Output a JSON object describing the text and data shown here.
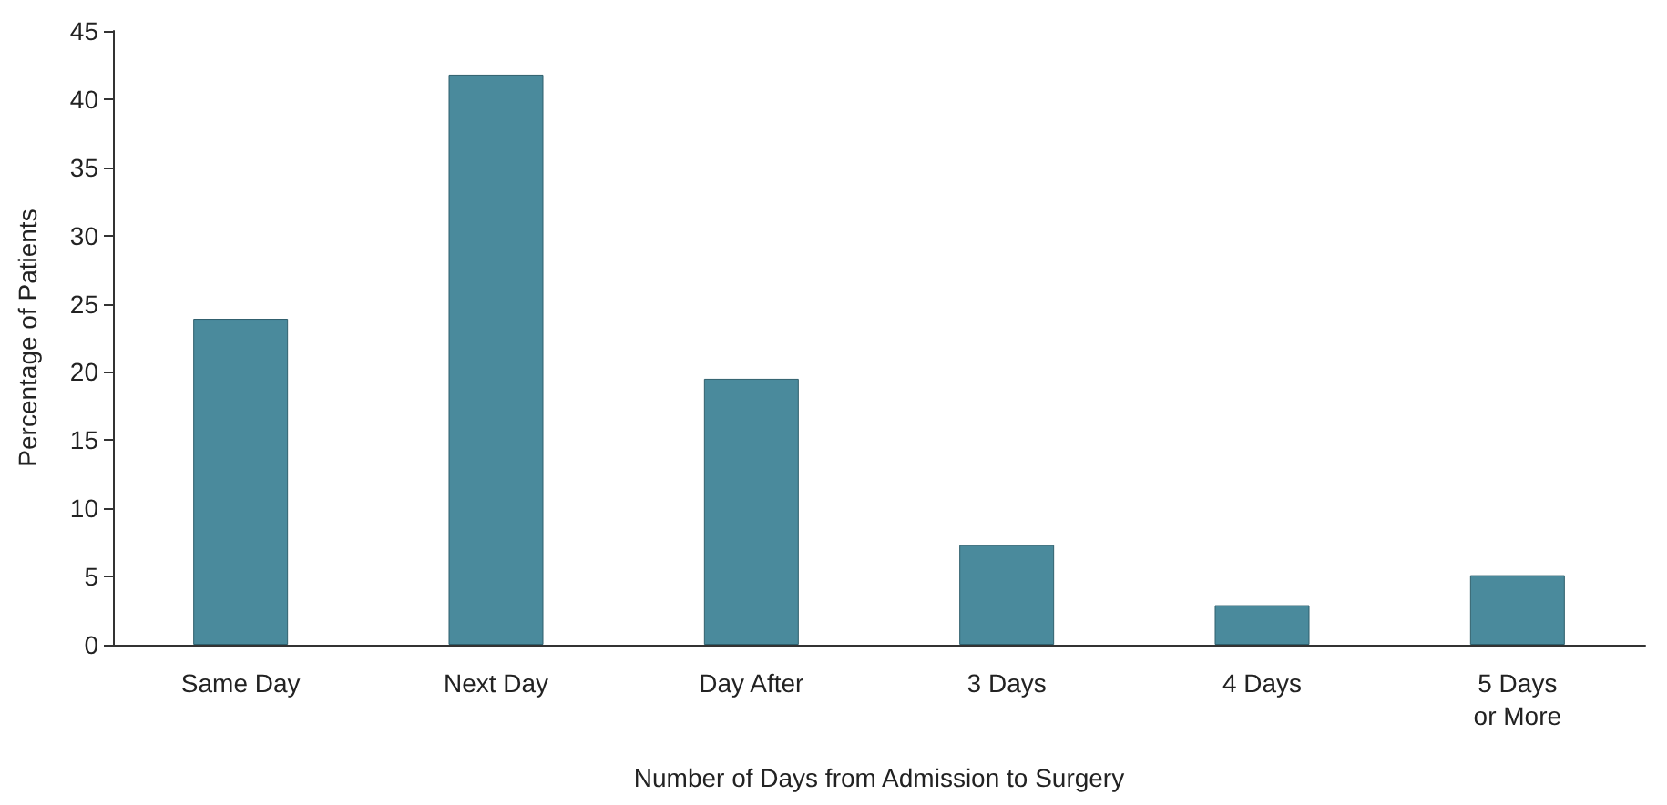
{
  "chart_data": {
    "type": "bar",
    "xlabel": "Number of Days from Admission to Surgery",
    "ylabel": "Percentage of Patients",
    "categories": [
      "Same Day",
      "Next Day",
      "Day After",
      "3 Days",
      "4 Days",
      "5 Days\nor More"
    ],
    "values": [
      23.9,
      41.8,
      19.5,
      7.3,
      2.9,
      5.1
    ],
    "color": "#4a8a9c",
    "ylim": [
      0,
      45
    ],
    "yticks": [
      0,
      5,
      10,
      15,
      20,
      25,
      30,
      35,
      40,
      45
    ],
    "grid": false
  }
}
